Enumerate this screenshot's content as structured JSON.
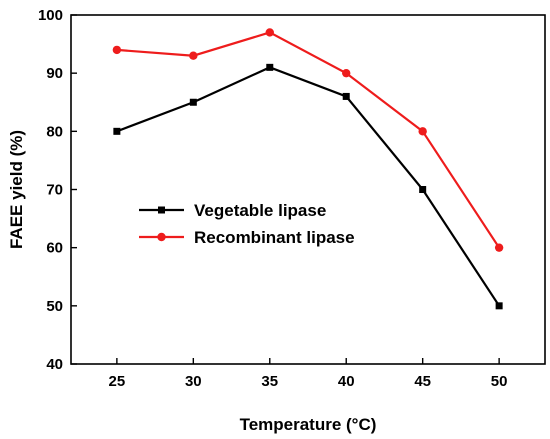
{
  "chart_data": {
    "type": "line",
    "title": "",
    "xlabel": "Temperature (°C)",
    "ylabel": "FAEE yield (%)",
    "x": [
      25,
      30,
      35,
      40,
      45,
      50
    ],
    "xlim": [
      22,
      53
    ],
    "ylim": [
      40,
      100
    ],
    "xticks": [
      25,
      30,
      35,
      40,
      45,
      50
    ],
    "yticks": [
      40,
      50,
      60,
      70,
      80,
      90,
      100
    ],
    "grid": false,
    "legend_position": "center-left",
    "series": [
      {
        "name": "Vegetable lipase",
        "values": [
          80,
          85,
          91,
          86,
          70,
          50
        ],
        "color": "#000000",
        "marker": "square"
      },
      {
        "name": "Recombinant lipase",
        "values": [
          94,
          93,
          97,
          90,
          80,
          60
        ],
        "color": "#ee1c1c",
        "marker": "circle"
      }
    ]
  }
}
